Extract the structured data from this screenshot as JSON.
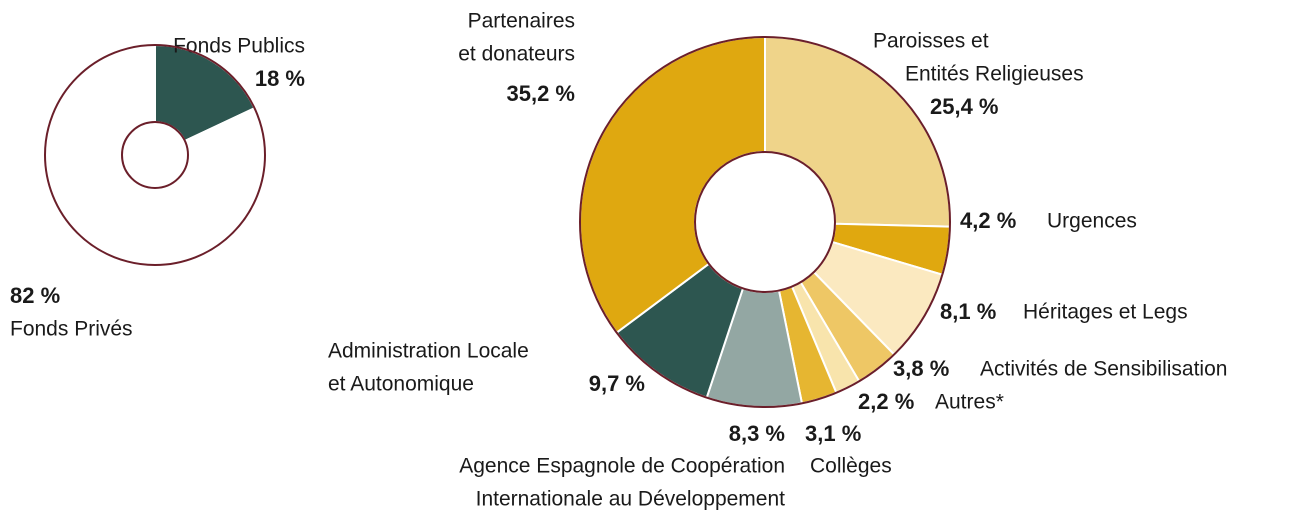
{
  "chart_data": [
    {
      "type": "donut",
      "categories": [
        [
          "Fonds Publics"
        ],
        [
          "Fonds Privés"
        ]
      ],
      "values": [
        18,
        82
      ],
      "value_labels": [
        "18 %",
        "82 %"
      ],
      "colors": [
        "#2d5650",
        "#ffffff"
      ]
    },
    {
      "type": "donut",
      "categories": [
        [
          "Paroisses et",
          "Entités Religieuses"
        ],
        [
          "Urgences"
        ],
        [
          "Héritages et Legs"
        ],
        [
          "Activités de Sensibilisation"
        ],
        [
          "Autres*"
        ],
        [
          "Collèges"
        ],
        [
          "Agence Espagnole de Coopération",
          "Internationale au Développement"
        ],
        [
          "Administration Locale",
          "et Autonomique"
        ],
        [
          "Partenaires",
          "et donateurs"
        ]
      ],
      "values": [
        25.4,
        4.2,
        8.1,
        3.8,
        2.2,
        3.1,
        8.3,
        9.7,
        35.2
      ],
      "value_labels": [
        "25,4 %",
        "4,2 %",
        "8,1 %",
        "3,8 %",
        "2,2 %",
        "3,1 %",
        "8,3 %",
        "9,7 %",
        "35,2 %"
      ],
      "colors": [
        "#efd48a",
        "#e0a80f",
        "#fbe9c0",
        "#eec765",
        "#f8e4ac",
        "#e6b631",
        "#93a7a3",
        "#2d5650",
        "#dfa810"
      ]
    }
  ]
}
